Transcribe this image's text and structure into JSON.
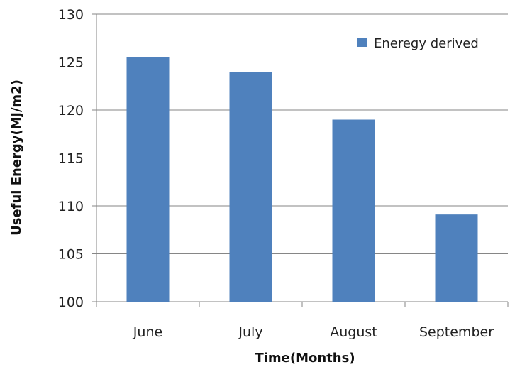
{
  "chart_data": {
    "type": "bar",
    "categories": [
      "June",
      "July",
      "August",
      "September"
    ],
    "series": [
      {
        "name": "Eneregy derived",
        "values": [
          125.5,
          124.0,
          119.0,
          109.1
        ],
        "color": "#4f81bd"
      }
    ],
    "title": "",
    "xlabel": "Time(Months)",
    "ylabel": "Useful Energy(Mj/m2)",
    "ylim": [
      100,
      130
    ],
    "yticks": [
      "100",
      "105",
      "110",
      "115",
      "120",
      "125",
      "130"
    ],
    "grid": true,
    "legend_position": "top-right"
  }
}
